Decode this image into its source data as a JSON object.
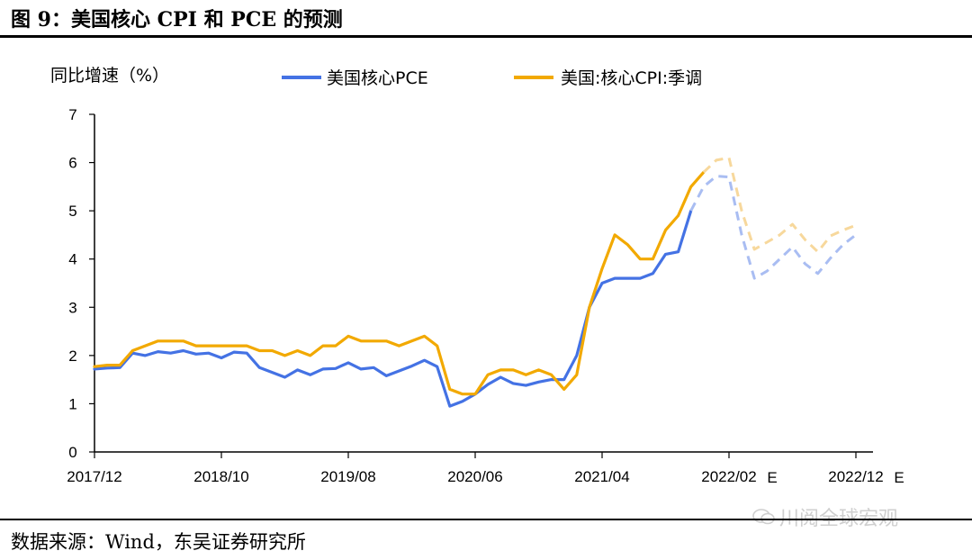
{
  "figure": {
    "title": "图 9：美国核心 CPI 和 PCE 的预测",
    "source": "数据来源：Wind，东吴证券研究所",
    "watermark": "川阅全球宏观"
  },
  "chart_data": {
    "type": "line",
    "ylabel": "同比增速（%）",
    "ylim": [
      0,
      7
    ],
    "yticks": [
      0,
      1,
      2,
      3,
      4,
      5,
      6,
      7
    ],
    "xlabels": [
      "2017/12",
      "2018/10",
      "2019/08",
      "2020/06",
      "2021/04",
      "2022/02",
      "2022/12"
    ],
    "xlabel_suffixes": [
      "",
      "",
      "",
      "",
      "",
      "E",
      "E"
    ],
    "grid": false,
    "legend_position": "top",
    "x_range": [
      0,
      60
    ],
    "series": [
      {
        "name": "美国核心PCE",
        "color": "#4472e4",
        "forecast_color": "#a9bdf2",
        "forecast_from": 47,
        "x": [
          0,
          1,
          2,
          3,
          4,
          5,
          6,
          7,
          8,
          9,
          10,
          11,
          12,
          13,
          14,
          15,
          16,
          17,
          18,
          19,
          20,
          21,
          22,
          23,
          24,
          25,
          26,
          27,
          28,
          29,
          30,
          31,
          32,
          33,
          34,
          35,
          36,
          37,
          38,
          39,
          40,
          41,
          42,
          43,
          44,
          45,
          46,
          47,
          48,
          49,
          50,
          51,
          52,
          53,
          54,
          55,
          56,
          57,
          58,
          59,
          60
        ],
        "values": [
          1.72,
          1.74,
          1.75,
          2.05,
          2.0,
          2.08,
          2.05,
          2.1,
          2.03,
          2.05,
          1.95,
          2.07,
          2.05,
          1.75,
          1.65,
          1.55,
          1.7,
          1.6,
          1.72,
          1.73,
          1.85,
          1.72,
          1.75,
          1.58,
          1.68,
          1.78,
          1.9,
          1.77,
          0.95,
          1.05,
          1.2,
          1.4,
          1.55,
          1.42,
          1.38,
          1.45,
          1.5,
          1.5,
          2.0,
          3.0,
          3.5,
          3.6,
          3.6,
          3.6,
          3.7,
          4.1,
          4.15,
          5.0,
          5.5,
          5.72,
          5.7,
          4.5,
          3.6,
          3.75,
          4.0,
          4.25,
          3.9,
          3.7,
          4.02,
          4.3,
          4.5
        ]
      },
      {
        "name": "美国:核心CPI:季调",
        "color": "#f2a900",
        "forecast_color": "#f7d89c",
        "forecast_from": 48,
        "x": [
          0,
          1,
          2,
          3,
          4,
          5,
          6,
          7,
          8,
          9,
          10,
          11,
          12,
          13,
          14,
          15,
          16,
          17,
          18,
          19,
          20,
          21,
          22,
          23,
          24,
          25,
          26,
          27,
          28,
          29,
          30,
          31,
          32,
          33,
          34,
          35,
          36,
          37,
          38,
          39,
          40,
          41,
          42,
          43,
          44,
          45,
          46,
          47,
          48,
          49,
          50,
          51,
          52,
          53,
          54,
          55,
          56,
          57,
          58,
          59,
          60
        ],
        "values": [
          1.77,
          1.8,
          1.8,
          2.1,
          2.2,
          2.3,
          2.3,
          2.3,
          2.2,
          2.2,
          2.2,
          2.2,
          2.2,
          2.1,
          2.1,
          2.0,
          2.1,
          2.0,
          2.2,
          2.2,
          2.4,
          2.3,
          2.3,
          2.3,
          2.2,
          2.3,
          2.4,
          2.2,
          1.3,
          1.2,
          1.2,
          1.6,
          1.7,
          1.7,
          1.6,
          1.7,
          1.6,
          1.3,
          1.6,
          3.0,
          3.8,
          4.5,
          4.3,
          4.0,
          4.0,
          4.6,
          4.9,
          5.5,
          5.8,
          6.05,
          6.1,
          5.0,
          4.2,
          4.35,
          4.5,
          4.72,
          4.4,
          4.15,
          4.48,
          4.6,
          4.7
        ]
      }
    ]
  }
}
